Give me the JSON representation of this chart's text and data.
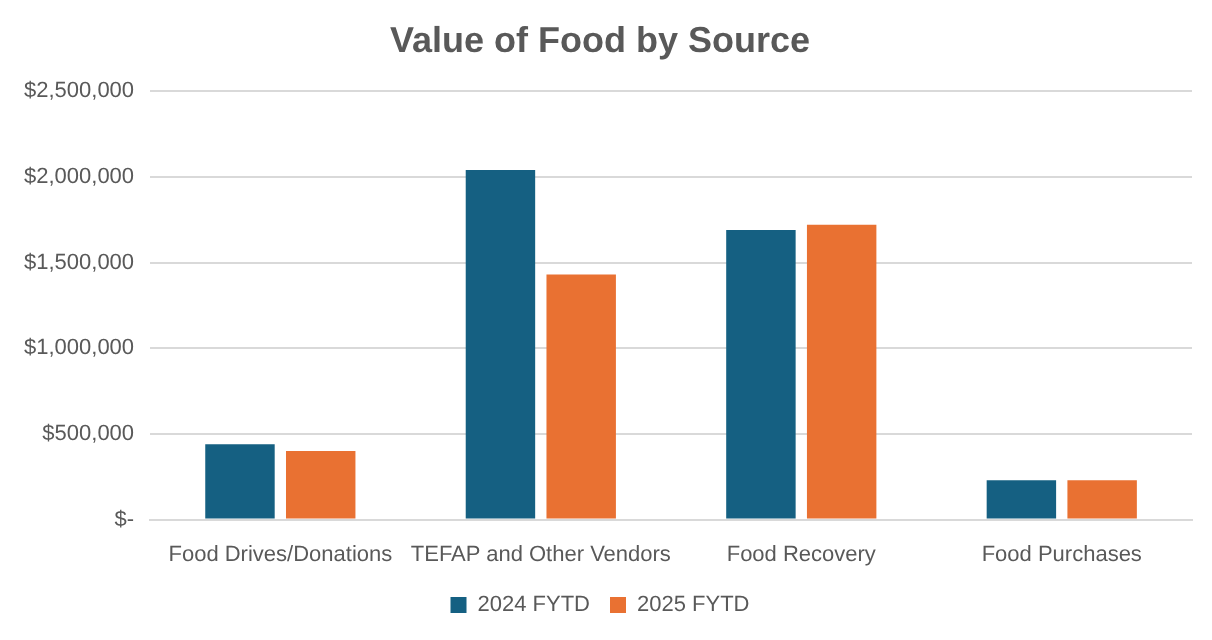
{
  "chart_data": {
    "type": "bar",
    "title": "Value of Food by Source",
    "categories": [
      "Food Drives/Donations",
      "TEFAP and Other Vendors",
      "Food Recovery",
      "Food Purchases"
    ],
    "series": [
      {
        "name": "2024 FYTD",
        "color": "#156082",
        "values": [
          440000,
          2040000,
          1690000,
          230000
        ]
      },
      {
        "name": "2025 FYTD",
        "color": "#e97132",
        "values": [
          400000,
          1430000,
          1720000,
          230000
        ]
      }
    ],
    "ylim": [
      0,
      2500000
    ],
    "yticks": [
      {
        "value": 0,
        "label": "$-"
      },
      {
        "value": 500000,
        "label": "$500,000"
      },
      {
        "value": 1000000,
        "label": "$1,000,000"
      },
      {
        "value": 1500000,
        "label": "$1,500,000"
      },
      {
        "value": 2000000,
        "label": "$2,000,000"
      },
      {
        "value": 2500000,
        "label": "$2,500,000"
      }
    ],
    "grid": "y",
    "legend": "bottom"
  }
}
